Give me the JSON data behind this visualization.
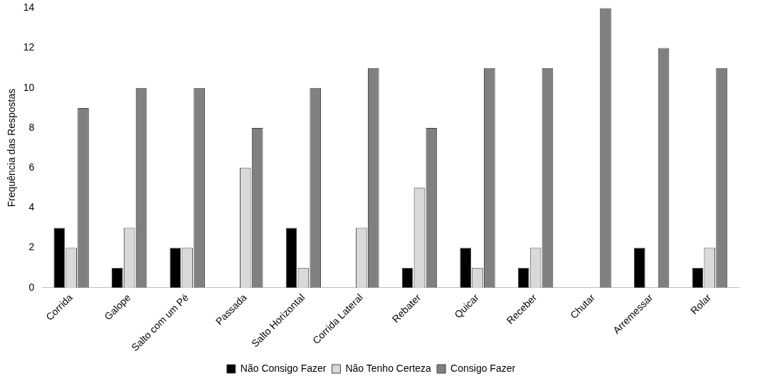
{
  "chart_data": {
    "type": "bar",
    "ylabel": "Frequência das Respostas",
    "categories": [
      "Corrida",
      "Galope",
      "Salto com um Pé",
      "Passada",
      "Salto Horizontal",
      "Corrida Lateral",
      "Rebater",
      "Quicar",
      "Receber",
      "Chutar",
      "Arremessar",
      "Rolar"
    ],
    "series": [
      {
        "name": "Não Consigo Fazer",
        "color": "#000000",
        "values": [
          3,
          1,
          2,
          0,
          3,
          0,
          1,
          2,
          1,
          0,
          2,
          1
        ]
      },
      {
        "name": "Não Tenho Certeza",
        "color": "#d9d9d9",
        "values": [
          2,
          3,
          2,
          6,
          1,
          3,
          5,
          1,
          2,
          0,
          0,
          2
        ]
      },
      {
        "name": "Consigo Fazer",
        "color": "#808080",
        "values": [
          9,
          10,
          10,
          8,
          10,
          11,
          8,
          11,
          11,
          14,
          12,
          11
        ]
      }
    ],
    "ylim": [
      0,
      14
    ],
    "yticks": [
      0,
      2,
      4,
      6,
      8,
      10,
      12,
      14
    ],
    "grid": false,
    "legend": "bottom"
  }
}
